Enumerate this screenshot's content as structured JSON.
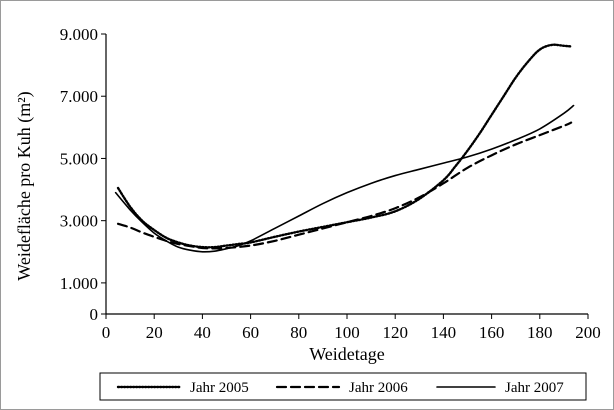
{
  "chart_data": {
    "type": "line",
    "title": "",
    "xlabel": "Weidetage",
    "ylabel": "Weidefläche pro Kuh (m²)",
    "xlim": [
      0,
      200
    ],
    "ylim": [
      0,
      9000
    ],
    "x_ticks": [
      "0",
      "20",
      "40",
      "60",
      "80",
      "100",
      "120",
      "140",
      "160",
      "180",
      "200"
    ],
    "y_ticks": [
      "0",
      "1.000",
      "3.000",
      "5.000",
      "7.000",
      "9.000"
    ],
    "y_tick_values": [
      0,
      1000,
      3000,
      5000,
      7000,
      9000
    ],
    "grid": false,
    "legend_position": "bottom",
    "series": [
      {
        "name": "Jahr 2005",
        "style": "dotted",
        "x": [
          5,
          10,
          15,
          20,
          25,
          30,
          35,
          40,
          45,
          50,
          55,
          60,
          70,
          80,
          90,
          100,
          110,
          120,
          130,
          140,
          145,
          150,
          155,
          160,
          165,
          170,
          175,
          180,
          185,
          190,
          193
        ],
        "y": [
          4050,
          3450,
          3000,
          2700,
          2450,
          2300,
          2200,
          2150,
          2150,
          2200,
          2250,
          2300,
          2480,
          2650,
          2800,
          2950,
          3100,
          3300,
          3700,
          4300,
          4750,
          5250,
          5800,
          6400,
          7000,
          7600,
          8100,
          8500,
          8650,
          8620,
          8600
        ]
      },
      {
        "name": "Jahr 2006",
        "style": "dashed",
        "x": [
          5,
          10,
          15,
          20,
          25,
          30,
          35,
          40,
          45,
          50,
          60,
          70,
          80,
          90,
          100,
          110,
          120,
          130,
          140,
          150,
          160,
          170,
          180,
          190,
          193
        ],
        "y": [
          2900,
          2780,
          2620,
          2480,
          2350,
          2250,
          2180,
          2120,
          2110,
          2120,
          2200,
          2350,
          2550,
          2750,
          2950,
          3150,
          3400,
          3750,
          4200,
          4700,
          5100,
          5450,
          5750,
          6050,
          6150
        ]
      },
      {
        "name": "Jahr 2007",
        "style": "solid",
        "x": [
          4,
          10,
          15,
          20,
          25,
          30,
          35,
          40,
          45,
          50,
          55,
          60,
          70,
          80,
          90,
          100,
          110,
          120,
          130,
          140,
          150,
          160,
          170,
          180,
          190,
          194
        ],
        "y": [
          3900,
          3350,
          2950,
          2600,
          2350,
          2150,
          2050,
          2000,
          2020,
          2100,
          2200,
          2350,
          2750,
          3150,
          3550,
          3900,
          4200,
          4450,
          4650,
          4850,
          5050,
          5300,
          5600,
          5950,
          6450,
          6700
        ]
      }
    ]
  }
}
